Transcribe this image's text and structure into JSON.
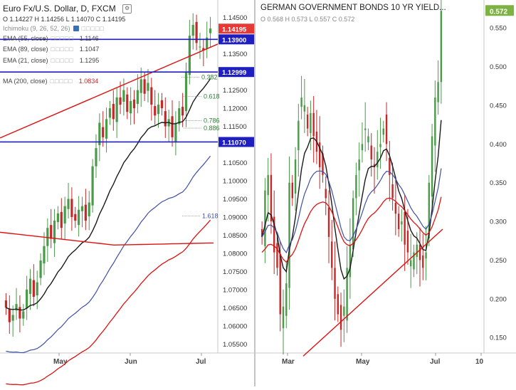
{
  "colors": {
    "up": "#4a9a4a",
    "down": "#c62828",
    "ema55": "#1a1a1a",
    "ema89": "#3f4fa8",
    "ema21": "#1a1a1a",
    "ma200": "#dd1111",
    "hline": "#1f1fbf",
    "trend": "#dd1111",
    "price_badge": "#e53935",
    "level_badge": "#1f1fbf",
    "last_badge_right": "#7cb342"
  },
  "left_panel": {
    "title": "Euro Fx/U.S. Dollar, D, FXCM",
    "ohlc_text": "O 1.14227 H 1.14256 L 1.14070 C 1.14195",
    "indicators": [
      {
        "name": "Ichimoku (9, 26, 52, 26)",
        "value": ""
      },
      {
        "name": "EMA (55, close)",
        "value": "1.1146"
      },
      {
        "name": "EMA (89, close)",
        "value": "1.1047"
      },
      {
        "name": "EMA (21, close)",
        "value": "1.1295"
      },
      {
        "name": "",
        "value": ""
      },
      {
        "name": "MA (200, close)",
        "value": "1.0834"
      }
    ],
    "current_price": "1.14195",
    "hlines": [
      "1.13900",
      "1.12999",
      "1.11070"
    ],
    "fib_labels": [
      "0.382",
      "0.618",
      "0.786",
      "0.886",
      "1.618"
    ],
    "month_labels": [
      "May",
      "Jun",
      "Jul"
    ],
    "price_ticks": [
      "1.14500",
      "1.13500",
      "1.12500",
      "1.12000",
      "1.11500",
      "1.10500",
      "1.10000",
      "1.09500",
      "1.09000",
      "1.08500",
      "1.08000",
      "1.07500",
      "1.07000",
      "1.06500",
      "1.06000",
      "1.05500"
    ]
  },
  "right_panel": {
    "title": "GERMAN GOVERNMENT BONDS 10 YR YIELD...",
    "ohlc_text": "O 0.568 H 0.573 L 0.557 C 0.572",
    "current_value": "0.572",
    "month_labels": [
      "Mar",
      "May",
      "Jul",
      "10"
    ],
    "yield_ticks": [
      "0.550",
      "0.500",
      "0.450",
      "0.400",
      "0.350",
      "0.300",
      "0.250",
      "0.200",
      "0.150"
    ]
  },
  "chart_data": [
    {
      "type": "line",
      "title": "Euro Fx/U.S. Dollar, D, FXCM",
      "chart_kind": "candlestick",
      "xlabel": "",
      "ylabel": "",
      "x_labels": [
        "May",
        "Jun",
        "Jul"
      ],
      "ylim": [
        1.0525,
        1.1475
      ],
      "last": {
        "open": 1.14227,
        "high": 1.14256,
        "low": 1.1407,
        "close": 1.14195
      },
      "approx_closes": [
        1.065,
        1.061,
        1.063,
        1.066,
        1.062,
        1.064,
        1.07,
        1.073,
        1.068,
        1.072,
        1.078,
        1.082,
        1.087,
        1.084,
        1.089,
        1.091,
        1.087,
        1.093,
        1.095,
        1.09,
        1.089,
        1.092,
        1.093,
        1.089,
        1.094,
        1.104,
        1.109,
        1.116,
        1.112,
        1.117,
        1.12,
        1.117,
        1.123,
        1.121,
        1.125,
        1.119,
        1.122,
        1.12,
        1.125,
        1.128,
        1.124,
        1.127,
        1.121,
        1.118,
        1.121,
        1.12,
        1.115,
        1.117,
        1.112,
        1.116,
        1.12,
        1.118,
        1.13,
        1.14,
        1.143,
        1.138,
        1.137,
        1.136,
        1.1395,
        1.142
      ],
      "series": [
        {
          "name": "EMA (55, close)",
          "last": 1.1146
        },
        {
          "name": "EMA (89, close)",
          "last": 1.1047
        },
        {
          "name": "EMA (21, close)",
          "last": 1.1295
        },
        {
          "name": "MA (200, close)",
          "last": 1.0834
        }
      ],
      "horizontal_levels": [
        1.139,
        1.12999,
        1.1107
      ]
    },
    {
      "type": "line",
      "title": "GERMAN GOVERNMENT BONDS 10 YR YIELD...",
      "chart_kind": "candlestick",
      "xlabel": "",
      "ylabel": "",
      "x_labels": [
        "Mar",
        "May",
        "Jul",
        "10"
      ],
      "ylim": [
        0.13,
        0.575
      ],
      "last": {
        "open": 0.568,
        "high": 0.573,
        "low": 0.557,
        "close": 0.572
      },
      "approx_closes": [
        0.28,
        0.34,
        0.36,
        0.3,
        0.26,
        0.24,
        0.18,
        0.19,
        0.22,
        0.35,
        0.33,
        0.38,
        0.43,
        0.46,
        0.45,
        0.42,
        0.44,
        0.41,
        0.39,
        0.37,
        0.36,
        0.33,
        0.28,
        0.24,
        0.2,
        0.18,
        0.16,
        0.19,
        0.24,
        0.27,
        0.33,
        0.36,
        0.38,
        0.4,
        0.42,
        0.41,
        0.38,
        0.37,
        0.39,
        0.4,
        0.42,
        0.4,
        0.36,
        0.33,
        0.31,
        0.29,
        0.3,
        0.27,
        0.26,
        0.25,
        0.26,
        0.27,
        0.25,
        0.24,
        0.26,
        0.35,
        0.41,
        0.46,
        0.48,
        0.572
      ]
    }
  ]
}
